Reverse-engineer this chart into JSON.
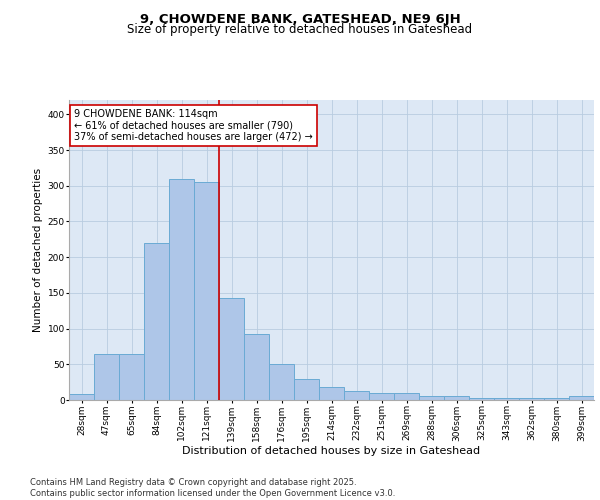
{
  "title": "9, CHOWDENE BANK, GATESHEAD, NE9 6JH",
  "subtitle": "Size of property relative to detached houses in Gateshead",
  "xlabel": "Distribution of detached houses by size in Gateshead",
  "ylabel": "Number of detached properties",
  "bin_labels": [
    "28sqm",
    "47sqm",
    "65sqm",
    "84sqm",
    "102sqm",
    "121sqm",
    "139sqm",
    "158sqm",
    "176sqm",
    "195sqm",
    "214sqm",
    "232sqm",
    "251sqm",
    "269sqm",
    "288sqm",
    "306sqm",
    "325sqm",
    "343sqm",
    "362sqm",
    "380sqm",
    "399sqm"
  ],
  "bar_heights": [
    8,
    65,
    65,
    220,
    310,
    305,
    143,
    92,
    50,
    30,
    18,
    13,
    10,
    10,
    5,
    5,
    3,
    3,
    3,
    3,
    5
  ],
  "bar_color": "#aec6e8",
  "bar_edge_color": "#6aaad4",
  "grid_color": "#c8d4e8",
  "background_color": "#dde8f5",
  "vline_x_index": 5,
  "vline_color": "#cc0000",
  "annotation_text": "9 CHOWDENE BANK: 114sqm\n← 61% of detached houses are smaller (790)\n37% of semi-detached houses are larger (472) →",
  "annotation_box_color": "#cc0000",
  "ylim": [
    0,
    420
  ],
  "yticks": [
    0,
    50,
    100,
    150,
    200,
    250,
    300,
    350,
    400
  ],
  "footer_text": "Contains HM Land Registry data © Crown copyright and database right 2025.\nContains public sector information licensed under the Open Government Licence v3.0.",
  "title_fontsize": 9.5,
  "subtitle_fontsize": 8.5,
  "xlabel_fontsize": 8,
  "ylabel_fontsize": 7.5,
  "tick_fontsize": 6.5,
  "annotation_fontsize": 7,
  "footer_fontsize": 6
}
